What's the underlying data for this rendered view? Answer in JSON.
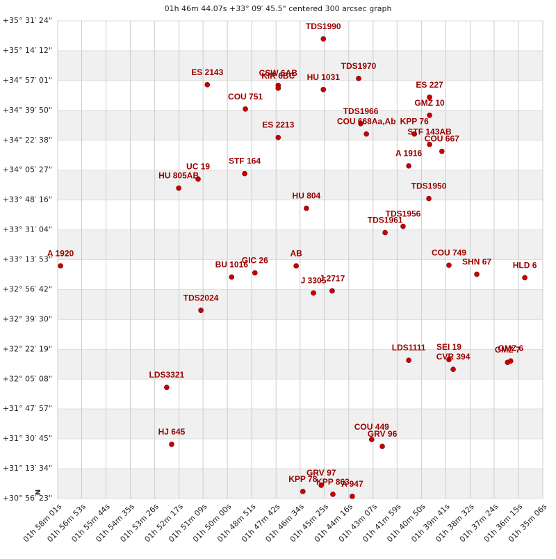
{
  "chart_data": {
    "type": "scatter",
    "title": "01h 46m 44.07s +33° 09′ 45.5\" centered 300 arcsec graph",
    "compass": "N",
    "color": "#cc0000",
    "label_color": "#990000",
    "grid": true,
    "xlim": [
      7081,
      5706
    ],
    "ylim": [
      111383,
      127884
    ],
    "xticks": [
      {
        "value": 7081,
        "label": "01h 58m 01s"
      },
      {
        "value": 7013,
        "label": "01h 56m 53s"
      },
      {
        "value": 6944,
        "label": "01h 55m 44s"
      },
      {
        "value": 6875,
        "label": "01h 54m 35s"
      },
      {
        "value": 6806,
        "label": "01h 53m 26s"
      },
      {
        "value": 6737,
        "label": "01h 52m 17s"
      },
      {
        "value": 6669,
        "label": "01h 51m 09s"
      },
      {
        "value": 6600,
        "label": "01h 50m 00s"
      },
      {
        "value": 6531,
        "label": "01h 48m 51s"
      },
      {
        "value": 6462,
        "label": "01h 47m 42s"
      },
      {
        "value": 6394,
        "label": "01h 46m 34s"
      },
      {
        "value": 6325,
        "label": "01h 45m 25s"
      },
      {
        "value": 6256,
        "label": "01h 44m 16s"
      },
      {
        "value": 6187,
        "label": "01h 43m 07s"
      },
      {
        "value": 6119,
        "label": "01h 41m 59s"
      },
      {
        "value": 6050,
        "label": "01h 40m 50s"
      },
      {
        "value": 5981,
        "label": "01h 39m 41s"
      },
      {
        "value": 5912,
        "label": "01h 38m 32s"
      },
      {
        "value": 5844,
        "label": "01h 37m 24s"
      },
      {
        "value": 5775,
        "label": "01h 36m 15s"
      },
      {
        "value": 5706,
        "label": "01h 35m 06s"
      }
    ],
    "yticks": [
      {
        "value": 127884,
        "label": "+35° 31′ 24\""
      },
      {
        "value": 126852,
        "label": "+35° 14′ 12\""
      },
      {
        "value": 125821,
        "label": "+34° 57′ 01\""
      },
      {
        "value": 124790,
        "label": "+34° 39′ 50\""
      },
      {
        "value": 123758,
        "label": "+34° 22′ 38\""
      },
      {
        "value": 122727,
        "label": "+34° 05′ 27\""
      },
      {
        "value": 121696,
        "label": "+33° 48′ 16\""
      },
      {
        "value": 120664,
        "label": "+33° 31′ 04\""
      },
      {
        "value": 119633,
        "label": "+33° 13′ 53\""
      },
      {
        "value": 118602,
        "label": "+32° 56′ 42\""
      },
      {
        "value": 117570,
        "label": "+32° 39′ 30\""
      },
      {
        "value": 116539,
        "label": "+32° 22′ 19\""
      },
      {
        "value": 115508,
        "label": "+32° 05′ 08\""
      },
      {
        "value": 114477,
        "label": "+31° 47′ 57\""
      },
      {
        "value": 113445,
        "label": "+31° 30′ 45\""
      },
      {
        "value": 112414,
        "label": "+31° 13′ 34\""
      },
      {
        "value": 111383,
        "label": "+30° 56′ 23\""
      }
    ],
    "labels": [
      "TDS1990",
      "ES 2143",
      "CSW  6AB",
      "KIR  6BC",
      "HU 1031",
      "TDS1970",
      "ES  227",
      "COU 751",
      "GMZ  10",
      "TDS1966",
      "COU 668Aa,Ab",
      "KPP  76",
      "STF 143AB",
      "COU 667",
      "ES 2213",
      "A  1916",
      "STF 164",
      "UC  19",
      "HU  805AB",
      "TDS1950",
      "HU  804",
      "TDS1956",
      "TDS1961",
      "A  1920",
      "AB",
      "COU 749",
      "SHN  67",
      "HLD   6",
      "BU 1016",
      "GIC  26",
      "J  3305",
      "J  2717",
      "TDS2024",
      "LDS1111",
      "SEI  19",
      "CVR 394",
      "GMZ   6",
      "GMZ   7",
      "LDS3321",
      "COU 449",
      "GRV  96",
      "HJ  645",
      "GRV  97",
      "KPP  78",
      "KPP 863",
      "A  947"
    ],
    "x": [
      6328,
      6657,
      6456,
      6456,
      6328,
      6228,
      6027,
      6549,
      6027,
      6222,
      6206,
      6070,
      6027,
      5992,
      6456,
      6086,
      6551,
      6683,
      6738,
      6029,
      6376,
      6102,
      6153,
      7073,
      6405,
      5972,
      5893,
      5757,
      6588,
      6522,
      6356,
      6303,
      6675,
      6086,
      5972,
      5960,
      5797,
      5806,
      6772,
      6191,
      6161,
      6758,
      6334,
      6386,
      6301,
      6246
    ],
    "y": [
      127261,
      125678,
      125654,
      125558,
      125510,
      125894,
      125246,
      124839,
      124623,
      124335,
      123975,
      123975,
      123616,
      123376,
      123855,
      122872,
      122608,
      122417,
      122105,
      121745,
      121409,
      120786,
      120570,
      119419,
      119419,
      119443,
      119131,
      119011,
      119035,
      119179,
      118484,
      118556,
      117884,
      116158,
      116182,
      115846,
      116134,
      116086,
      115223,
      113424,
      113184,
      113256,
      111841,
      111626,
      111530,
      111458
    ]
  }
}
